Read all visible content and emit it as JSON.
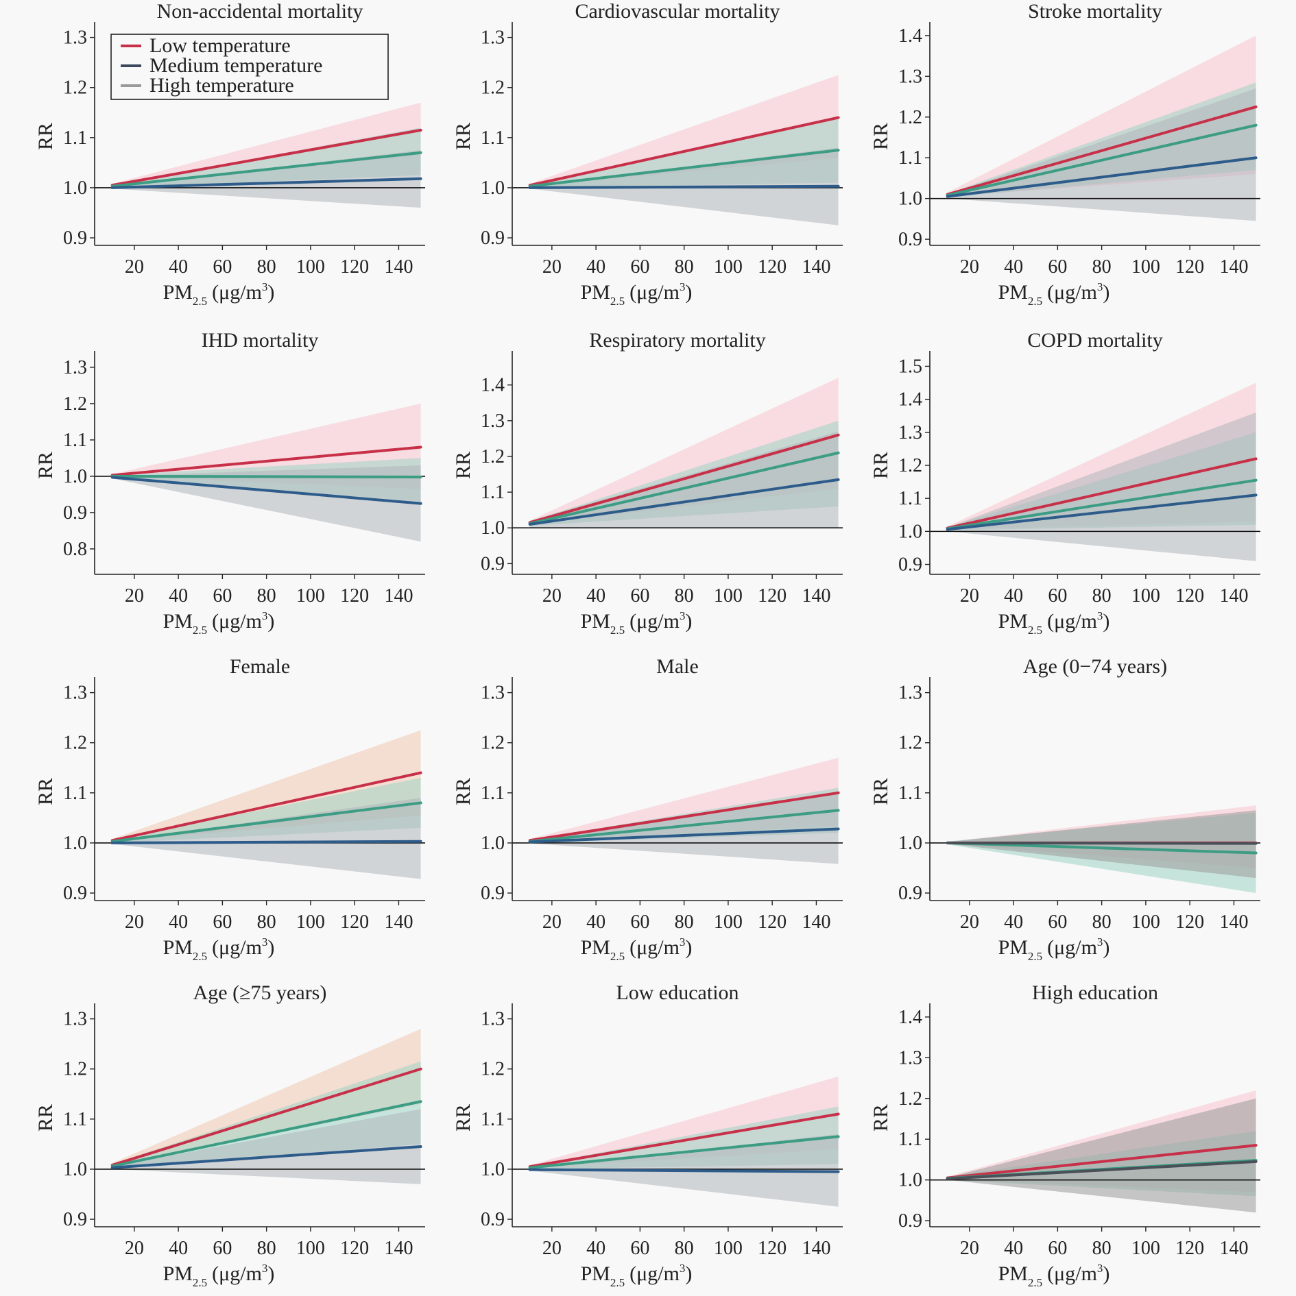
{
  "legend": {
    "items": [
      {
        "label": "Low temperature",
        "color": "#c73048"
      },
      {
        "label": "Medium temperature",
        "color": "#3a4a5c"
      },
      {
        "label": "High temperature",
        "color": "#9a9a9a"
      }
    ]
  },
  "axis_text": {
    "ylabel": "RR",
    "xlabel_main": "PM",
    "xlabel_sub": "2.5",
    "xlabel_unit": "(μg/m",
    "xlabel_sup": "3",
    "xlabel_close": ")"
  },
  "chart_data": [
    {
      "type": "line",
      "title": "Non-accidental mortality",
      "xlabel": "PM2.5 (μg/m3)",
      "ylabel": "RR",
      "x": [
        10,
        150
      ],
      "xlim": [
        2,
        152
      ],
      "xticks": [
        20,
        40,
        60,
        80,
        100,
        120,
        140
      ],
      "ylim": [
        0.885,
        1.32
      ],
      "yticks": [
        0.9,
        1.0,
        1.1,
        1.2,
        1.3
      ],
      "reference_line": 1.0,
      "legend": true,
      "series": [
        {
          "name": "Low temperature",
          "values": [
            1.005,
            1.115
          ],
          "ci_low": [
            1.005,
            1.065
          ],
          "ci_high": [
            1.008,
            1.17
          ],
          "line_color": "#c73048",
          "band_color": "#f7c5cd"
        },
        {
          "name": "High temperature",
          "values": [
            1.003,
            1.07
          ],
          "ci_low": [
            1.0,
            1.025
          ],
          "ci_high": [
            1.005,
            1.12
          ],
          "line_color": "#3c9c84",
          "band_color": "#9fd3c5"
        },
        {
          "name": "Medium temperature",
          "values": [
            1.0,
            1.018
          ],
          "ci_low": [
            0.998,
            0.96
          ],
          "ci_high": [
            1.002,
            1.075
          ],
          "line_color": "#2e5c8a",
          "band_color": "#b0b6bc"
        }
      ]
    },
    {
      "type": "line",
      "title": "Cardiovascular mortality",
      "xlabel": "PM2.5 (μg/m3)",
      "ylabel": "RR",
      "x": [
        10,
        150
      ],
      "xlim": [
        2,
        152
      ],
      "xticks": [
        20,
        40,
        60,
        80,
        100,
        120,
        140
      ],
      "ylim": [
        0.885,
        1.32
      ],
      "yticks": [
        0.9,
        1.0,
        1.1,
        1.2,
        1.3
      ],
      "reference_line": 1.0,
      "series": [
        {
          "name": "Low temperature",
          "values": [
            1.005,
            1.14
          ],
          "ci_low": [
            1.003,
            1.06
          ],
          "ci_high": [
            1.008,
            1.225
          ],
          "line_color": "#c73048",
          "band_color": "#f7c5cd"
        },
        {
          "name": "High temperature",
          "values": [
            1.003,
            1.075
          ],
          "ci_low": [
            1.0,
            1.01
          ],
          "ci_high": [
            1.006,
            1.14
          ],
          "line_color": "#3c9c84",
          "band_color": "#9fd3c5"
        },
        {
          "name": "Medium temperature",
          "values": [
            1.0,
            1.003
          ],
          "ci_low": [
            0.998,
            0.925
          ],
          "ci_high": [
            1.002,
            1.08
          ],
          "line_color": "#2e5c8a",
          "band_color": "#b0b6bc"
        }
      ]
    },
    {
      "type": "line",
      "title": "Stroke mortality",
      "xlabel": "PM2.5 (μg/m3)",
      "ylabel": "RR",
      "x": [
        10,
        150
      ],
      "xlim": [
        2,
        152
      ],
      "xticks": [
        20,
        40,
        60,
        80,
        100,
        120,
        140
      ],
      "ylim": [
        0.885,
        1.42
      ],
      "yticks": [
        0.9,
        1.0,
        1.1,
        1.2,
        1.3,
        1.4
      ],
      "reference_line": 1.0,
      "series": [
        {
          "name": "Low temperature",
          "values": [
            1.01,
            1.225
          ],
          "ci_low": [
            1.005,
            1.06
          ],
          "ci_high": [
            1.015,
            1.4
          ],
          "line_color": "#c73048",
          "band_color": "#f7c5cd"
        },
        {
          "name": "High temperature",
          "values": [
            1.008,
            1.18
          ],
          "ci_low": [
            1.003,
            1.07
          ],
          "ci_high": [
            1.012,
            1.285
          ],
          "line_color": "#3c9c84",
          "band_color": "#9fd3c5"
        },
        {
          "name": "Medium temperature",
          "values": [
            1.005,
            1.1
          ],
          "ci_low": [
            1.0,
            0.945
          ],
          "ci_high": [
            1.01,
            1.27
          ],
          "line_color": "#2e5c8a",
          "band_color": "#b0b6bc"
        }
      ]
    },
    {
      "type": "line",
      "title": "IHD mortality",
      "xlabel": "PM2.5 (μg/m3)",
      "ylabel": "RR",
      "x": [
        10,
        150
      ],
      "xlim": [
        2,
        152
      ],
      "xticks": [
        20,
        40,
        60,
        80,
        100,
        120,
        140
      ],
      "ylim": [
        0.73,
        1.33
      ],
      "yticks": [
        0.8,
        0.9,
        1.0,
        1.1,
        1.2,
        1.3
      ],
      "reference_line": 1.0,
      "series": [
        {
          "name": "Low temperature",
          "values": [
            1.003,
            1.08
          ],
          "ci_low": [
            1.0,
            0.965
          ],
          "ci_high": [
            1.006,
            1.2
          ],
          "line_color": "#c73048",
          "band_color": "#f7c5cd"
        },
        {
          "name": "High temperature",
          "values": [
            1.0,
            0.998
          ],
          "ci_low": [
            0.997,
            0.93
          ],
          "ci_high": [
            1.003,
            1.05
          ],
          "line_color": "#3c9c84",
          "band_color": "#9fd3c5"
        },
        {
          "name": "Medium temperature",
          "values": [
            0.997,
            0.925
          ],
          "ci_low": [
            0.994,
            0.82
          ],
          "ci_high": [
            1.0,
            1.03
          ],
          "line_color": "#2e5c8a",
          "band_color": "#b0b6bc"
        }
      ]
    },
    {
      "type": "line",
      "title": "Respiratory mortality",
      "xlabel": "PM2.5 (μg/m3)",
      "ylabel": "RR",
      "x": [
        10,
        150
      ],
      "xlim": [
        2,
        152
      ],
      "xticks": [
        20,
        40,
        60,
        80,
        100,
        120,
        140
      ],
      "ylim": [
        0.87,
        1.48
      ],
      "yticks": [
        0.9,
        1.0,
        1.1,
        1.2,
        1.3,
        1.4
      ],
      "reference_line": 1.0,
      "series": [
        {
          "name": "Low temperature",
          "values": [
            1.015,
            1.26
          ],
          "ci_low": [
            1.01,
            1.11
          ],
          "ci_high": [
            1.02,
            1.42
          ],
          "line_color": "#c73048",
          "band_color": "#f7c5cd"
        },
        {
          "name": "High temperature",
          "values": [
            1.012,
            1.21
          ],
          "ci_low": [
            1.006,
            1.06
          ],
          "ci_high": [
            1.018,
            1.3
          ],
          "line_color": "#3c9c84",
          "band_color": "#9fd3c5"
        },
        {
          "name": "Medium temperature",
          "values": [
            1.01,
            1.135
          ],
          "ci_low": [
            1.0,
            1.0
          ],
          "ci_high": [
            1.02,
            1.27
          ],
          "line_color": "#2e5c8a",
          "band_color": "#b0b6bc"
        }
      ]
    },
    {
      "type": "line",
      "title": "COPD mortality",
      "xlabel": "PM2.5 (μg/m3)",
      "ylabel": "RR",
      "x": [
        10,
        150
      ],
      "xlim": [
        2,
        152
      ],
      "xticks": [
        20,
        40,
        60,
        80,
        100,
        120,
        140
      ],
      "ylim": [
        0.87,
        1.53
      ],
      "yticks": [
        0.9,
        1.0,
        1.1,
        1.2,
        1.3,
        1.4,
        1.5
      ],
      "reference_line": 1.0,
      "series": [
        {
          "name": "Low temperature",
          "values": [
            1.01,
            1.22
          ],
          "ci_low": [
            1.005,
            1.03
          ],
          "ci_high": [
            1.015,
            1.45
          ],
          "line_color": "#c73048",
          "band_color": "#f7c5cd"
        },
        {
          "name": "High temperature",
          "values": [
            1.008,
            1.155
          ],
          "ci_low": [
            1.003,
            1.02
          ],
          "ci_high": [
            1.013,
            1.3
          ],
          "line_color": "#3c9c84",
          "band_color": "#9fd3c5"
        },
        {
          "name": "Medium temperature",
          "values": [
            1.006,
            1.11
          ],
          "ci_low": [
            1.0,
            0.91
          ],
          "ci_high": [
            1.012,
            1.36
          ],
          "line_color": "#2e5c8a",
          "band_color": "#b0b6bc"
        }
      ]
    },
    {
      "type": "line",
      "title": "Female",
      "xlabel": "PM2.5 (μg/m3)",
      "ylabel": "RR",
      "x": [
        10,
        150
      ],
      "xlim": [
        2,
        152
      ],
      "xticks": [
        20,
        40,
        60,
        80,
        100,
        120,
        140
      ],
      "ylim": [
        0.885,
        1.32
      ],
      "yticks": [
        0.9,
        1.0,
        1.1,
        1.2,
        1.3
      ],
      "reference_line": 1.0,
      "series": [
        {
          "name": "Low temperature",
          "values": [
            1.005,
            1.14
          ],
          "ci_low": [
            1.003,
            1.055
          ],
          "ci_high": [
            1.008,
            1.225
          ],
          "line_color": "#c73048",
          "band_color": "#f0c8b0"
        },
        {
          "name": "High temperature",
          "values": [
            1.003,
            1.08
          ],
          "ci_low": [
            1.0,
            1.03
          ],
          "ci_high": [
            1.006,
            1.13
          ],
          "line_color": "#3c9c84",
          "band_color": "#9fd3c5"
        },
        {
          "name": "Medium temperature",
          "values": [
            1.0,
            1.003
          ],
          "ci_low": [
            0.998,
            0.928
          ],
          "ci_high": [
            1.002,
            1.09
          ],
          "line_color": "#2e5c8a",
          "band_color": "#b0b6bc"
        }
      ]
    },
    {
      "type": "line",
      "title": "Male",
      "xlabel": "PM2.5 (μg/m3)",
      "ylabel": "RR",
      "x": [
        10,
        150
      ],
      "xlim": [
        2,
        152
      ],
      "xticks": [
        20,
        40,
        60,
        80,
        100,
        120,
        140
      ],
      "ylim": [
        0.885,
        1.32
      ],
      "yticks": [
        0.9,
        1.0,
        1.1,
        1.2,
        1.3
      ],
      "reference_line": 1.0,
      "series": [
        {
          "name": "Low temperature",
          "values": [
            1.005,
            1.1
          ],
          "ci_low": [
            1.003,
            1.035
          ],
          "ci_high": [
            1.008,
            1.17
          ],
          "line_color": "#c73048",
          "band_color": "#f7c5cd"
        },
        {
          "name": "High temperature",
          "values": [
            1.003,
            1.065
          ],
          "ci_low": [
            1.0,
            1.02
          ],
          "ci_high": [
            1.006,
            1.11
          ],
          "line_color": "#3c9c84",
          "band_color": "#9fd3c5"
        },
        {
          "name": "Medium temperature",
          "values": [
            1.002,
            1.028
          ],
          "ci_low": [
            0.999,
            0.958
          ],
          "ci_high": [
            1.005,
            1.1
          ],
          "line_color": "#2e5c8a",
          "band_color": "#b0b6bc"
        }
      ]
    },
    {
      "type": "line",
      "title": "Age (0−74 years)",
      "xlabel": "PM2.5 (μg/m3)",
      "ylabel": "RR",
      "x": [
        10,
        150
      ],
      "xlim": [
        2,
        152
      ],
      "xticks": [
        20,
        40,
        60,
        80,
        100,
        120,
        140
      ],
      "ylim": [
        0.885,
        1.32
      ],
      "yticks": [
        0.9,
        1.0,
        1.1,
        1.2,
        1.3
      ],
      "reference_line": 1.0,
      "series": [
        {
          "name": "Low temperature",
          "values": [
            1.0,
            1.0
          ],
          "ci_low": [
            0.998,
            0.95
          ],
          "ci_high": [
            1.002,
            1.075
          ],
          "line_color": "#c73048",
          "band_color": "#f7c5cd"
        },
        {
          "name": "High temperature",
          "values": [
            1.0,
            0.98
          ],
          "ci_low": [
            0.997,
            0.9
          ],
          "ci_high": [
            1.003,
            1.06
          ],
          "line_color": "#3c9c84",
          "band_color": "#9fd3c5"
        },
        {
          "name": "Medium temperature",
          "values": [
            1.0,
            0.999
          ],
          "ci_low": [
            0.998,
            0.93
          ],
          "ci_high": [
            1.002,
            1.065
          ],
          "line_color": "#4a5058",
          "band_color": "#9a9a9a"
        }
      ]
    },
    {
      "type": "line",
      "title": "Age (≥75 years)",
      "xlabel": "PM2.5 (μg/m3)",
      "ylabel": "RR",
      "x": [
        10,
        150
      ],
      "xlim": [
        2,
        152
      ],
      "xticks": [
        20,
        40,
        60,
        80,
        100,
        120,
        140
      ],
      "ylim": [
        0.885,
        1.32
      ],
      "yticks": [
        0.9,
        1.0,
        1.1,
        1.2,
        1.3
      ],
      "reference_line": 1.0,
      "series": [
        {
          "name": "Low temperature",
          "values": [
            1.008,
            1.2
          ],
          "ci_low": [
            1.005,
            1.13
          ],
          "ci_high": [
            1.012,
            1.28
          ],
          "line_color": "#c73048",
          "band_color": "#f0c8b0"
        },
        {
          "name": "High temperature",
          "values": [
            1.006,
            1.135
          ],
          "ci_low": [
            1.003,
            1.05
          ],
          "ci_high": [
            1.01,
            1.215
          ],
          "line_color": "#3c9c84",
          "band_color": "#9fd3c5"
        },
        {
          "name": "Medium temperature",
          "values": [
            1.003,
            1.045
          ],
          "ci_low": [
            1.0,
            0.97
          ],
          "ci_high": [
            1.006,
            1.12
          ],
          "line_color": "#2e5c8a",
          "band_color": "#b0b6bc"
        }
      ]
    },
    {
      "type": "line",
      "title": "Low education",
      "xlabel": "PM2.5 (μg/m3)",
      "ylabel": "RR",
      "x": [
        10,
        150
      ],
      "xlim": [
        2,
        152
      ],
      "xticks": [
        20,
        40,
        60,
        80,
        100,
        120,
        140
      ],
      "ylim": [
        0.885,
        1.32
      ],
      "yticks": [
        0.9,
        1.0,
        1.1,
        1.2,
        1.3
      ],
      "reference_line": 1.0,
      "series": [
        {
          "name": "Low temperature",
          "values": [
            1.005,
            1.11
          ],
          "ci_low": [
            1.003,
            1.04
          ],
          "ci_high": [
            1.008,
            1.185
          ],
          "line_color": "#c73048",
          "band_color": "#f7c5cd"
        },
        {
          "name": "High temperature",
          "values": [
            1.003,
            1.065
          ],
          "ci_low": [
            1.0,
            1.01
          ],
          "ci_high": [
            1.006,
            1.125
          ],
          "line_color": "#3c9c84",
          "band_color": "#9fd3c5"
        },
        {
          "name": "Medium temperature",
          "values": [
            0.999,
            0.995
          ],
          "ci_low": [
            0.997,
            0.925
          ],
          "ci_high": [
            1.001,
            1.07
          ],
          "line_color": "#2e5c8a",
          "band_color": "#b0b6bc"
        }
      ]
    },
    {
      "type": "line",
      "title": "High education",
      "xlabel": "PM2.5 (μg/m3)",
      "ylabel": "RR",
      "x": [
        10,
        150
      ],
      "xlim": [
        2,
        152
      ],
      "xticks": [
        20,
        40,
        60,
        80,
        100,
        120,
        140
      ],
      "ylim": [
        0.885,
        1.42
      ],
      "yticks": [
        0.9,
        1.0,
        1.1,
        1.2,
        1.3,
        1.4
      ],
      "reference_line": 1.0,
      "series": [
        {
          "name": "Low temperature",
          "values": [
            1.005,
            1.085
          ],
          "ci_low": [
            1.002,
            0.97
          ],
          "ci_high": [
            1.008,
            1.22
          ],
          "line_color": "#c73048",
          "band_color": "#f7c5cd"
        },
        {
          "name": "High temperature",
          "values": [
            1.004,
            1.048
          ],
          "ci_low": [
            1.0,
            0.96
          ],
          "ci_high": [
            1.008,
            1.12
          ],
          "line_color": "#3c9c84",
          "band_color": "#9fd3c5"
        },
        {
          "name": "Medium temperature",
          "values": [
            1.003,
            1.045
          ],
          "ci_low": [
            1.0,
            0.92
          ],
          "ci_high": [
            1.006,
            1.2
          ],
          "line_color": "#4a5058",
          "band_color": "#9a9a9a"
        }
      ]
    }
  ]
}
